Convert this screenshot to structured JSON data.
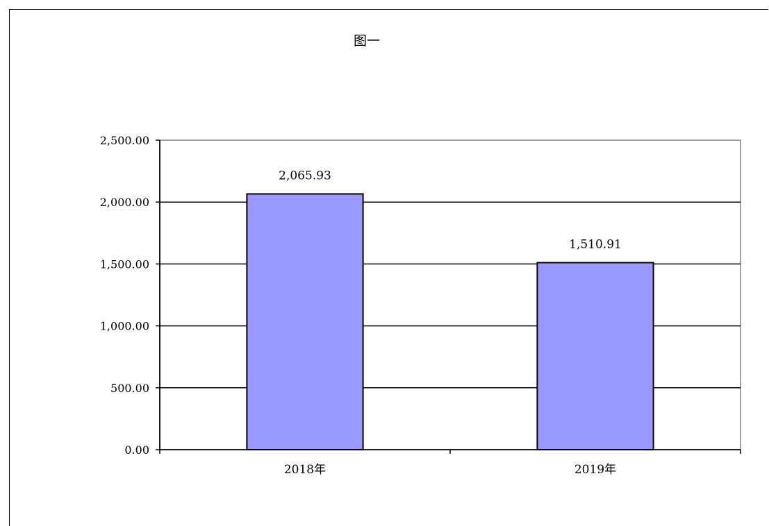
{
  "chart_data": {
    "type": "bar",
    "title": "图一",
    "categories": [
      "2018年",
      "2019年"
    ],
    "values": [
      2065.93,
      1510.91
    ],
    "data_labels": [
      "2,065.93",
      "1,510.91"
    ],
    "y_tick_labels": [
      "0.00",
      "500.00",
      "1,000.00",
      "1,500.00",
      "2,000.00",
      "2,500.00"
    ],
    "ylim": [
      0,
      2500
    ],
    "y_step": 500,
    "xlabel": "",
    "ylabel": "",
    "grid": true,
    "legend": false,
    "colors": {
      "bar_fill": "#9999ff",
      "bar_stroke": "#000000",
      "grid": "#000000",
      "plot_border": "#808080"
    }
  }
}
